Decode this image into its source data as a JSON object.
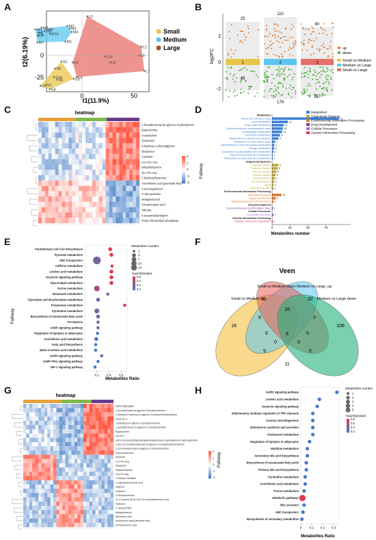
{
  "panels": {
    "a": "A",
    "b": "B",
    "c": "C",
    "d": "D",
    "e": "E",
    "f": "F",
    "g": "G",
    "h": "H"
  },
  "colors": {
    "small": "#e8c64a",
    "medium": "#5bc6f0",
    "large": "#e8706a",
    "up": "#e07a2e",
    "down": "#4aa83c"
  },
  "panel_a": {
    "xlabel": "t1(11.9%)",
    "ylabel": "t2(6.19%)",
    "yticks": [
      "25",
      "0",
      "-25"
    ],
    "xticks": [
      "0",
      "50"
    ],
    "legend": [
      "Small",
      "Medium",
      "Large"
    ],
    "points": {
      "small": [
        {
          "x": -40,
          "y": -35,
          "l": "S7"
        },
        {
          "x": -35,
          "y": -34,
          "l": "S1"
        },
        {
          "x": -31,
          "y": -39,
          "l": "S4"
        },
        {
          "x": -26,
          "y": -15,
          "l": "S6"
        },
        {
          "x": -27,
          "y": -25,
          "l": "S10"
        },
        {
          "x": -24,
          "y": -28,
          "l": "S5"
        },
        {
          "x": -20,
          "y": -7,
          "l": "S2"
        },
        {
          "x": -8,
          "y": -27,
          "l": "S3"
        }
      ],
      "medium": [
        {
          "x": -45,
          "y": 30,
          "l": "M3"
        },
        {
          "x": -39,
          "y": 32,
          "l": "M8"
        },
        {
          "x": -36,
          "y": 28,
          "l": "M5"
        },
        {
          "x": -34,
          "y": 30,
          "l": "M6"
        },
        {
          "x": -31,
          "y": 25,
          "l": "M10"
        },
        {
          "x": -43,
          "y": 15,
          "l": "M7"
        },
        {
          "x": -16,
          "y": 16,
          "l": "M1"
        },
        {
          "x": -10,
          "y": 27,
          "l": "M4"
        },
        {
          "x": -14,
          "y": 34,
          "l": "M2"
        },
        {
          "x": -12,
          "y": 31,
          "l": "M9"
        }
      ],
      "large": [
        {
          "x": 5,
          "y": 45,
          "l": "L3"
        },
        {
          "x": -9,
          "y": -8,
          "l": "L6"
        },
        {
          "x": -5,
          "y": -25,
          "l": "L9"
        },
        {
          "x": 22,
          "y": -1,
          "l": "L10"
        },
        {
          "x": 27,
          "y": -8,
          "l": "L5"
        },
        {
          "x": 55,
          "y": 0,
          "l": "L8"
        },
        {
          "x": 57,
          "y": 10,
          "l": "L2"
        },
        {
          "x": 60,
          "y": -18,
          "l": "L7"
        }
      ]
    }
  },
  "panel_b": {
    "ylabel": "log2FC",
    "yticks": [
      "2",
      "0",
      "-2"
    ],
    "counts": {
      "g1_up": "25",
      "g1_down": "48",
      "g2_up": "110",
      "g2_down": "179",
      "g3_up": "60",
      "g3_down": "157",
      "mid1": "1",
      "mid2": "2",
      "mid3": "3"
    },
    "legend_updown": [
      "up",
      "down"
    ],
    "legend_groups": [
      "Small vs Medium",
      "Medium vs Large",
      "Small vs Large"
    ]
  },
  "panel_c": {
    "title": "heatmap",
    "rows": [
      "1-hexadecanoyl-sn-glycero-3-phosphocholine",
      "Bupleurotine",
      "Acetylsalvin",
      "Galactose",
      "4-hydroxy-L-phenylglycine",
      "Glutamine",
      "Anethole",
      "Leu-Ser-Arg",
      "Dihydrothymine",
      "Glu-Thr-Arg",
      "7-hydroxyflavanone",
      "Arachidonic acid (peroxide free)",
      "4-acetoxyphenol",
      "2'-deoxyuridine",
      "Melapterisenol",
      "Chaulmoogric acid",
      "Tellurite",
      "4-acetamidoantipyrin",
      "Tris(2-chloroethyl) phosphate"
    ],
    "scale": [
      "2",
      "1",
      "0",
      "-1",
      "-2"
    ]
  },
  "panel_d": {
    "ylabel": "Pathway",
    "xlabel": "Metabolites number",
    "xticks": [
      "0",
      "25",
      "50",
      "75"
    ],
    "legend": [
      "Metabolism",
      "Organismal Systems",
      "Environmental Information Processing",
      "Drug Development",
      "Cellular Processes",
      "Genetic Information Processing"
    ],
    "legend_colors": [
      "#3c82d8",
      "#b8a830",
      "#e07a2e",
      "#7a3a8c",
      "#9a6fd0",
      "#d63a5a"
    ],
    "items": [
      {
        "label": "Metabolism",
        "header": true,
        "cat": 0
      },
      {
        "label": "Global and overview maps",
        "value": 93,
        "cat": 0
      },
      {
        "label": "Lipid metabolism",
        "value": 22,
        "cat": 0
      },
      {
        "label": "Amino acid metabolism",
        "value": 16,
        "cat": 0
      },
      {
        "label": "Chemical structure transformation maps",
        "value": 15,
        "cat": 0
      },
      {
        "label": "Carbohydrate metabolism",
        "value": 14,
        "cat": 0
      },
      {
        "label": "Nucleotide metabolism",
        "value": 11,
        "cat": 0
      },
      {
        "label": "Metabolism of cofactors and vitamins",
        "value": 9,
        "cat": 0
      },
      {
        "label": "Metabolism of other amino acids",
        "value": 4,
        "cat": 0
      },
      {
        "label": "Biosynthesis of other secondary metabolites",
        "value": 3,
        "cat": 0
      },
      {
        "label": "Energy metabolism",
        "value": 3,
        "cat": 0
      },
      {
        "label": "Xenobiotics biodegradation and metabolism",
        "value": 2,
        "cat": 0
      },
      {
        "label": "Glycan biosynthesis and metabolism",
        "value": 1,
        "cat": 0
      },
      {
        "label": "Metabolism of terpenoids and polyketides",
        "value": 1,
        "cat": 0
      },
      {
        "label": "Organismal Systems",
        "header": true,
        "cat": 1
      },
      {
        "label": "Digestive system",
        "value": 9,
        "cat": 1
      },
      {
        "label": "Endocrine system",
        "value": 8,
        "cat": 1
      },
      {
        "label": "Nervous system",
        "value": 6,
        "cat": 1
      },
      {
        "label": "Immune system",
        "value": 5,
        "cat": 1
      },
      {
        "label": "Sensory system",
        "value": 4,
        "cat": 1
      },
      {
        "label": "Excretory system",
        "value": 3,
        "cat": 1
      },
      {
        "label": "Aging",
        "value": 2,
        "cat": 1
      },
      {
        "label": "Circulatory system",
        "value": 2,
        "cat": 1
      },
      {
        "label": "Environmental Information Processing",
        "header": true,
        "cat": 2
      },
      {
        "label": "Membrane transport",
        "value": 13,
        "cat": 2
      },
      {
        "label": "Signal transduction",
        "value": 5,
        "cat": 2
      },
      {
        "label": "Signaling molecules and interaction",
        "value": 2,
        "cat": 2
      },
      {
        "label": "Drug Development",
        "header": true,
        "cat": 3
      },
      {
        "label": "Chemical structure transformation maps",
        "value": 1,
        "cat": 3
      },
      {
        "label": "Cellular Processes",
        "header": true,
        "cat": 4
      },
      {
        "label": "Cell growth and death",
        "value": 2,
        "cat": 4
      },
      {
        "label": "Genetic Information Processing",
        "header": true,
        "cat": 5
      },
      {
        "label": "Folding, sorting and degradation",
        "value": 1,
        "cat": 5
      }
    ]
  },
  "panel_e": {
    "ylabel": "Pathway",
    "xlabel": "Metabolites Ratio",
    "xticks": [
      "0.2",
      "0.4",
      "0.6"
    ],
    "size_title": "Metabolites number",
    "size_values": [
      "1",
      "4",
      "7",
      "10",
      "13"
    ],
    "color_title": "-log10(Qvalue)",
    "color_values": [
      "0.5",
      "0.4",
      "0.3",
      "0.2"
    ],
    "items": [
      {
        "label": "Pantothenate and CoA biosynthesis",
        "ratio": 0.42,
        "n": 2,
        "q": 0.5
      },
      {
        "label": "Pyruvate metabolism",
        "ratio": 0.44,
        "n": 2,
        "q": 0.5
      },
      {
        "label": "ABC transporters",
        "ratio": 0.2,
        "n": 13,
        "q": 0.3
      },
      {
        "label": "Caffeine metabolism",
        "ratio": 0.45,
        "n": 1,
        "q": 0.5
      },
      {
        "label": "Linoleic acid metabolism",
        "ratio": 0.44,
        "n": 2,
        "q": 0.5
      },
      {
        "label": "Oxytocin signaling pathway",
        "ratio": 0.44,
        "n": 2,
        "q": 0.5
      },
      {
        "label": "Glycerolipid metabolism",
        "ratio": 0.44,
        "n": 2,
        "q": 0.5
      },
      {
        "label": "Purine metabolism",
        "ratio": 0.2,
        "n": 6,
        "q": 0.4
      },
      {
        "label": "Butanoate metabolism",
        "ratio": 0.38,
        "n": 1,
        "q": 0.3
      },
      {
        "label": "Glyoxylate and dicarboxylate metabolism",
        "ratio": 0.22,
        "n": 2,
        "q": 0.3
      },
      {
        "label": "Propanoate metabolism",
        "ratio": 0.66,
        "n": 1,
        "q": 0.5
      },
      {
        "label": "Pyrimidine metabolism",
        "ratio": 0.2,
        "n": 4,
        "q": 0.3
      },
      {
        "label": "Biosynthesis of unsaturated fatty acids",
        "ratio": 0.22,
        "n": 2,
        "q": 0.3
      },
      {
        "label": "Ferroptosis",
        "ratio": 0.22,
        "n": 1,
        "q": 0.3
      },
      {
        "label": "cAMP signaling pathway",
        "ratio": 0.22,
        "n": 1,
        "q": 0.3
      },
      {
        "label": "Regulation of lipolysis in adipocytes",
        "ratio": 0.21,
        "n": 1,
        "q": 0.2
      },
      {
        "label": "Arachidonic acid metabolism",
        "ratio": 0.19,
        "n": 2,
        "q": 0.2
      },
      {
        "label": "Fatty acid biosynthesis",
        "ratio": 0.18,
        "n": 1,
        "q": 0.2
      },
      {
        "label": "alpha-Linolenic acid metabolism",
        "ratio": 0.18,
        "n": 1,
        "q": 0.2
      },
      {
        "label": "GnRH signaling pathway",
        "ratio": 0.28,
        "n": 1,
        "q": 0.3
      },
      {
        "label": "cGMP-PKG signaling pathway",
        "ratio": 0.22,
        "n": 1,
        "q": 0.2
      },
      {
        "label": "HIF-1 signaling pathway",
        "ratio": 0.17,
        "n": 1,
        "q": 0.2
      }
    ]
  },
  "panel_f": {
    "title": "Veen",
    "sets": [
      "Small vs Medium up",
      "Small vs Medium down",
      "Medium vs Large_up",
      "Medium vs Large down"
    ],
    "regions": [
      "18",
      "30",
      "92",
      "106",
      "6",
      "16",
      "0",
      "0",
      "11",
      "0",
      "9",
      "0",
      "0",
      "0",
      "6"
    ]
  },
  "panel_g": {
    "title": "heatmap",
    "rows": [
      "alpha-arginylglite",
      "1-hexadecanoyl-sn-glycero-3-phosphocholine",
      "1-stearoyl-2-hydroxy-sn-glycero-3-phosphoethanolamine",
      "Dextrose a",
      "1-palmitoyl-sn-glycero-3-phosphocholine",
      "1-pentadecanoyl-sn-glycero-3-phosphocholine",
      "Bupleurotine",
      "Lyi 16:3",
      "4-[2-(4-[4-(acetyl)hydrazinyl]amino]phenoxy-4-(acetylamino)-hydroxy]methyl]-4-oxobutanoic acid",
      "1-(9z,12z-octadecadienoyl)-sn-glycero-3-phosphoethanolamine",
      "1-(1z-hexadecenyl)-sn-glycero-3-phosphocholine",
      "Glycocholic acid",
      "Anethole",
      "Leu-Ser-Arg",
      "Diosgenin",
      "Dihydrothymine",
      "Glu-Thr-Arg",
      "1-methyl-l-histidine",
      "1-naphthaleneacetic acid",
      "Hippuric",
      "Catechol",
      "4-Hexylresorcinol",
      "11,12-epoxy-5z,8z,14z,17z-eicosatetraenoic acid",
      "Tellurium",
      "2'-deoxyuridine",
      "Melapterisenol",
      "Mevalonic acid",
      "Arachidonic acid (peroxide free)",
      "Pentadecanoic acid"
    ],
    "scale": [
      "2",
      "1",
      "0",
      "-1",
      "-2"
    ]
  },
  "panel_h": {
    "ylabel": "Pathway",
    "xlabel": "Metabolites Ratio",
    "xticks": [
      "0",
      "0.1",
      "0.2",
      "0.3"
    ],
    "size_title": "Metabolites number",
    "size_values": [
      "1",
      "2",
      "3",
      "4",
      "5"
    ],
    "color_title": "-log10(Qvalue)",
    "color_values": [
      "0.8",
      "0.6",
      "0.4",
      "0.2"
    ],
    "items": [
      {
        "label": "GnRH signaling pathway",
        "ratio": 0.33,
        "n": 1,
        "q": 0.2
      },
      {
        "label": "Linoleic acid metabolism",
        "ratio": 0.17,
        "n": 1,
        "q": 0.2
      },
      {
        "label": "Oxytocin signaling pathway",
        "ratio": 0.15,
        "n": 1,
        "q": 0.2
      },
      {
        "label": "Inflammatory mediator regulation of TRP channels",
        "ratio": 0.11,
        "n": 1,
        "q": 0.2
      },
      {
        "label": "Ovarian steroidogenesis",
        "ratio": 0.11,
        "n": 1,
        "q": 0.2
      },
      {
        "label": "Aldosterone synthesis and secretion",
        "ratio": 0.11,
        "n": 1,
        "q": 0.2
      },
      {
        "label": "Cholesterol metabolism",
        "ratio": 0.11,
        "n": 1,
        "q": 0.2
      },
      {
        "label": "Regulation of lipolysis in adipocytes",
        "ratio": 0.08,
        "n": 1,
        "q": 0.2
      },
      {
        "label": "Histidine metabolism",
        "ratio": 0.06,
        "n": 1,
        "q": 0.2
      },
      {
        "label": "Secondary bile acid biosynthesis",
        "ratio": 0.06,
        "n": 1,
        "q": 0.2
      },
      {
        "label": "Biosynthesis of unsaturated fatty acids",
        "ratio": 0.05,
        "n": 1,
        "q": 0.2
      },
      {
        "label": "Primary bile acid biosynthesis",
        "ratio": 0.05,
        "n": 1,
        "q": 0.2
      },
      {
        "label": "Pyrimidine metabolism",
        "ratio": 0.04,
        "n": 1,
        "q": 0.2
      },
      {
        "label": "Arachidonic acid metabolism",
        "ratio": 0.04,
        "n": 1,
        "q": 0.2
      },
      {
        "label": "Purine metabolism",
        "ratio": 0.03,
        "n": 1,
        "q": 0.2
      },
      {
        "label": "Metabolic pathways",
        "ratio": 0.015,
        "n": 5,
        "q": 0.8
      },
      {
        "label": "Bile secretion",
        "ratio": 0.03,
        "n": 1,
        "q": 0.2
      },
      {
        "label": "ABC transporters",
        "ratio": 0.02,
        "n": 1,
        "q": 0.2
      },
      {
        "label": "Biosynthesis of secondary metabolites",
        "ratio": 0.01,
        "n": 1,
        "q": 0.2
      }
    ]
  }
}
